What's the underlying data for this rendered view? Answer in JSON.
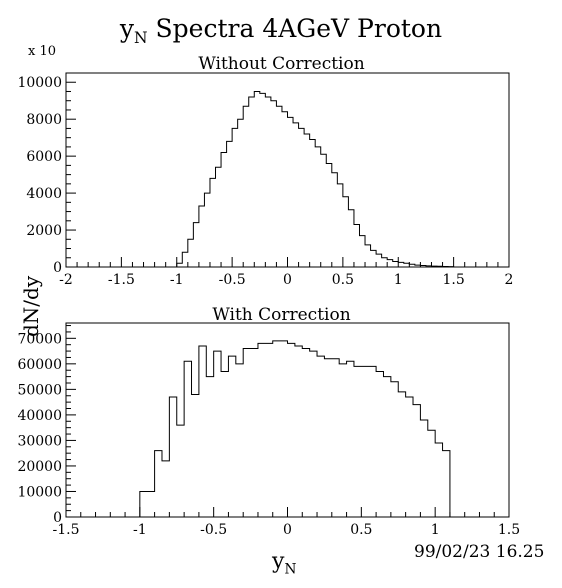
{
  "figure": {
    "title_main": "y",
    "title_sub": "N",
    "title_rest": " Spectra 4AGeV  Proton",
    "ylabel": "dN/dy",
    "xlabel_main": "y",
    "xlabel_sub": "N",
    "stamp": "99/02/23    16.25"
  },
  "chart_data": [
    {
      "type": "histogram",
      "title": "Without Correction",
      "multiplier_label": "x 10",
      "xlabel": "yN",
      "ylabel": "dN/dy",
      "xlim": [
        -2,
        2
      ],
      "ylim": [
        0,
        10500
      ],
      "bin_width": 0.05,
      "bin_start": -1.0,
      "xticks": [
        -2,
        -1.5,
        -1,
        -0.5,
        0,
        0.5,
        1,
        1.5,
        2
      ],
      "xtick_labels": [
        "-2",
        "-1.5",
        "-1",
        "-0.5",
        "0",
        "0.5",
        "1",
        "1.5",
        "2"
      ],
      "yticks": [
        0,
        2000,
        4000,
        6000,
        8000,
        10000
      ],
      "ytick_labels": [
        "0",
        "2000",
        "4000",
        "6000",
        "8000",
        "10000"
      ],
      "values": [
        200,
        800,
        1500,
        2400,
        3300,
        4000,
        4800,
        5400,
        6200,
        6800,
        7500,
        8000,
        8700,
        9200,
        9500,
        9400,
        9200,
        9000,
        8700,
        8400,
        8100,
        7800,
        7500,
        7200,
        6900,
        6500,
        6100,
        5600,
        5100,
        4500,
        3800,
        3100,
        2300,
        1700,
        1200,
        900,
        700,
        500,
        400,
        300,
        250,
        200,
        150,
        100,
        80,
        60,
        50,
        40,
        30,
        20
      ]
    },
    {
      "type": "histogram",
      "title": "With Correction",
      "xlabel": "yN",
      "ylabel": "dN/dy",
      "xlim": [
        -1.5,
        1.5
      ],
      "ylim": [
        0,
        76000
      ],
      "bin_width": 0.05,
      "bin_start": -1.0,
      "xticks": [
        -1.5,
        -1,
        -0.5,
        0,
        0.5,
        1,
        1.5
      ],
      "xtick_labels": [
        "-1.5",
        "-1",
        "-0.5",
        "0",
        "0.5",
        "1",
        "1.5"
      ],
      "yticks": [
        0,
        10000,
        20000,
        30000,
        40000,
        50000,
        60000,
        70000
      ],
      "ytick_labels": [
        "0",
        "10000",
        "20000",
        "30000",
        "40000",
        "50000",
        "60000",
        "70000"
      ],
      "values": [
        10000,
        10000,
        26000,
        22000,
        47000,
        36000,
        61000,
        48000,
        67000,
        55000,
        65000,
        57000,
        63000,
        60000,
        66000,
        66000,
        68000,
        68000,
        69000,
        69000,
        68000,
        67000,
        66000,
        65000,
        63000,
        62000,
        62000,
        60000,
        61000,
        59000,
        59000,
        59000,
        57000,
        55000,
        53000,
        49000,
        47000,
        44000,
        38000,
        34000,
        29000,
        26000
      ]
    }
  ]
}
